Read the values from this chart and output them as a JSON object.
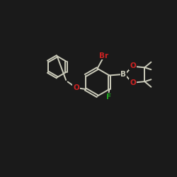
{
  "bg_color": "#1a1a1a",
  "line_color": "#ccccbb",
  "bond_width": 1.4,
  "atom_colors": {
    "Br": "#cc2222",
    "F": "#22aa22",
    "O": "#cc2222",
    "B": "#ccccbb",
    "C": "#ccccbb"
  },
  "font_size": 7.5
}
